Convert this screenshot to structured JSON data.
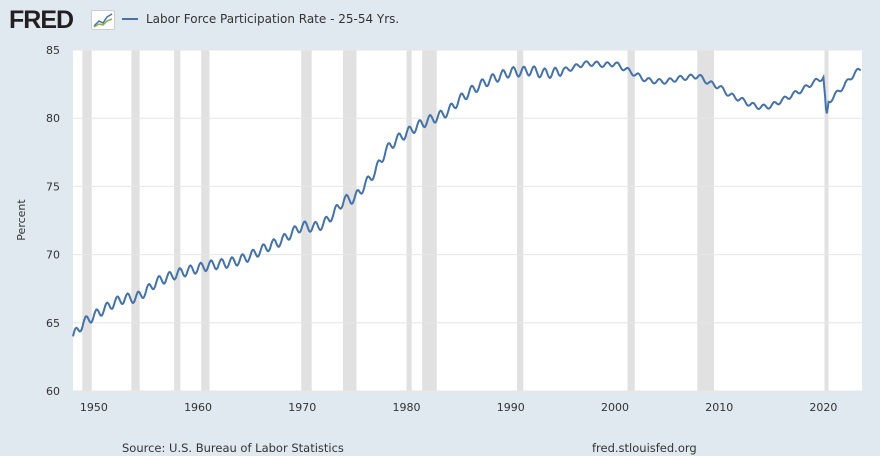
{
  "header": {
    "logo": "FRED",
    "legend_label": "Labor Force Participation Rate - 25-54 Yrs."
  },
  "footer": {
    "source": "Source: U.S. Bureau of Labor Statistics",
    "site": "fred.stlouisfed.org"
  },
  "colors": {
    "line": "#4572a7",
    "recession": "#e1e1e1",
    "grid": "#e6e6e6"
  },
  "chart_data": {
    "type": "line",
    "title": "Labor Force Participation Rate - 25-54 Yrs.",
    "xlabel": "",
    "ylabel": "Percent",
    "xlim": [
      1948,
      2023.7
    ],
    "ylim": [
      60,
      85
    ],
    "xticks": [
      1950,
      1960,
      1970,
      1980,
      1990,
      2000,
      2010,
      2020
    ],
    "yticks": [
      60,
      65,
      70,
      75,
      80,
      85
    ],
    "recessions": [
      [
        1948.9,
        1949.8
      ],
      [
        1953.6,
        1954.4
      ],
      [
        1957.7,
        1958.3
      ],
      [
        1960.3,
        1961.1
      ],
      [
        1969.9,
        1970.9
      ],
      [
        1973.9,
        1975.2
      ],
      [
        1980.0,
        1980.5
      ],
      [
        1981.5,
        1982.9
      ],
      [
        1990.6,
        1991.2
      ],
      [
        2001.2,
        2001.9
      ],
      [
        2007.9,
        2009.5
      ],
      [
        2020.1,
        2020.3
      ]
    ],
    "series": [
      {
        "name": "Labor Force Participation Rate - 25-54 Yrs.",
        "x": [
          1948,
          1949,
          1950,
          1951,
          1952,
          1953,
          1954,
          1955,
          1956,
          1957,
          1958,
          1959,
          1960,
          1961,
          1962,
          1963,
          1964,
          1965,
          1966,
          1967,
          1968,
          1969,
          1970,
          1971,
          1972,
          1973,
          1974,
          1975,
          1976,
          1977,
          1978,
          1979,
          1980,
          1981,
          1982,
          1983,
          1984,
          1985,
          1986,
          1987,
          1988,
          1989,
          1990,
          1991,
          1992,
          1993,
          1994,
          1995,
          1996,
          1997,
          1998,
          1999,
          2000,
          2001,
          2002,
          2003,
          2004,
          2005,
          2006,
          2007,
          2008,
          2009,
          2010,
          2011,
          2012,
          2013,
          2014,
          2015,
          2016,
          2017,
          2018,
          2019,
          2020.0,
          2020.3,
          2020.5,
          2021,
          2022,
          2023,
          2023.6
        ],
        "y": [
          64.0,
          65.0,
          65.5,
          66.0,
          66.5,
          66.8,
          66.8,
          67.3,
          68.0,
          68.3,
          68.6,
          68.8,
          69.0,
          69.2,
          69.3,
          69.4,
          69.6,
          69.9,
          70.3,
          70.7,
          71.0,
          71.6,
          72.1,
          72.0,
          72.2,
          73.0,
          74.0,
          74.1,
          75.1,
          76.1,
          77.6,
          78.4,
          78.9,
          79.4,
          79.8,
          80.1,
          80.5,
          81.3,
          81.9,
          82.4,
          82.8,
          83.1,
          83.4,
          83.4,
          83.5,
          83.3,
          83.3,
          83.5,
          83.7,
          84.0,
          84.0,
          83.9,
          84.0,
          83.6,
          83.2,
          82.8,
          82.7,
          82.7,
          82.9,
          83.0,
          83.1,
          82.6,
          82.3,
          81.7,
          81.4,
          81.0,
          80.8,
          80.9,
          81.3,
          81.7,
          82.1,
          82.6,
          83.0,
          80.0,
          81.2,
          81.6,
          82.4,
          83.3,
          83.6
        ]
      }
    ]
  }
}
